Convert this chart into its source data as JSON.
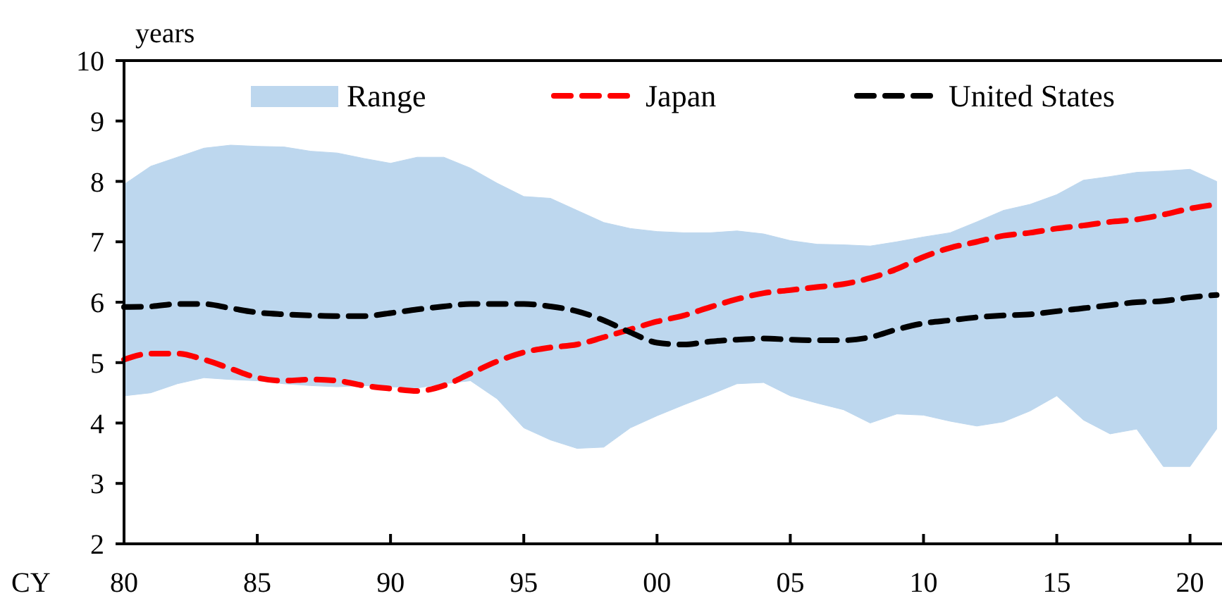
{
  "chart_data": {
    "type": "line",
    "ylabel": "years",
    "xlabel": "CY",
    "x": [
      1980,
      1981,
      1982,
      1983,
      1984,
      1985,
      1986,
      1987,
      1988,
      1989,
      1990,
      1991,
      1992,
      1993,
      1994,
      1995,
      1996,
      1997,
      1998,
      1999,
      2000,
      2001,
      2002,
      2003,
      2004,
      2005,
      2006,
      2007,
      2008,
      2009,
      2010,
      2011,
      2012,
      2013,
      2014,
      2015,
      2016,
      2017,
      2018,
      2019,
      2020,
      2021
    ],
    "series": [
      {
        "name": "Range",
        "color": "#bdd7ee",
        "values": [
          null,
          null,
          null,
          null,
          null,
          null,
          null,
          null,
          null,
          null,
          null,
          null,
          null,
          null,
          null,
          null,
          null,
          null,
          null,
          null,
          null,
          null,
          null,
          null,
          null,
          null,
          null,
          null,
          null,
          null,
          null,
          null,
          null,
          null,
          null,
          null,
          null,
          null,
          null,
          null,
          null,
          null
        ],
        "lower": [
          4.45,
          4.5,
          4.65,
          4.75,
          4.72,
          4.7,
          4.65,
          4.62,
          4.6,
          4.62,
          4.6,
          4.58,
          4.65,
          4.7,
          4.4,
          3.92,
          3.72,
          3.58,
          3.6,
          3.92,
          4.12,
          4.3,
          4.47,
          4.65,
          4.67,
          4.45,
          4.33,
          4.22,
          4.0,
          4.15,
          4.13,
          4.03,
          3.95,
          4.02,
          4.2,
          4.45,
          4.05,
          3.82,
          3.9,
          3.28,
          3.28,
          3.9
        ],
        "upper": [
          7.95,
          8.25,
          8.4,
          8.55,
          8.6,
          8.58,
          8.57,
          8.5,
          8.47,
          8.38,
          8.3,
          8.4,
          8.4,
          8.22,
          7.97,
          7.75,
          7.72,
          7.52,
          7.32,
          7.22,
          7.17,
          7.15,
          7.15,
          7.18,
          7.13,
          7.02,
          6.96,
          6.95,
          6.93,
          7.0,
          7.08,
          7.15,
          7.33,
          7.52,
          7.62,
          7.78,
          8.02,
          8.08,
          8.15,
          8.17,
          8.2,
          8.0
        ]
      },
      {
        "name": "Japan",
        "color": "#ff0000",
        "line_style": "dashed",
        "values": [
          5.05,
          5.15,
          5.15,
          5.05,
          4.9,
          4.75,
          4.7,
          4.72,
          4.7,
          4.62,
          4.57,
          4.53,
          4.62,
          4.82,
          5.02,
          5.17,
          5.25,
          5.3,
          5.42,
          5.55,
          5.68,
          5.78,
          5.92,
          6.05,
          6.15,
          6.2,
          6.25,
          6.3,
          6.4,
          6.55,
          6.75,
          6.9,
          7.0,
          7.1,
          7.15,
          7.22,
          7.27,
          7.33,
          7.37,
          7.45,
          7.55,
          7.62
        ]
      },
      {
        "name": "United States",
        "color": "#000000",
        "line_style": "dashed",
        "values": [
          5.92,
          5.93,
          5.97,
          5.97,
          5.9,
          5.83,
          5.8,
          5.78,
          5.77,
          5.77,
          5.82,
          5.88,
          5.93,
          5.97,
          5.97,
          5.97,
          5.93,
          5.85,
          5.7,
          5.5,
          5.33,
          5.3,
          5.35,
          5.38,
          5.4,
          5.38,
          5.37,
          5.37,
          5.42,
          5.55,
          5.65,
          5.7,
          5.75,
          5.78,
          5.8,
          5.85,
          5.9,
          5.95,
          6.0,
          6.02,
          6.08,
          6.12
        ]
      }
    ],
    "xlim": [
      1980,
      2021.2
    ],
    "xticks": [
      {
        "value": 1980,
        "label": "80"
      },
      {
        "value": 1985,
        "label": "85"
      },
      {
        "value": 1990,
        "label": "90"
      },
      {
        "value": 1995,
        "label": "95"
      },
      {
        "value": 2000,
        "label": "00"
      },
      {
        "value": 2005,
        "label": "05"
      },
      {
        "value": 2010,
        "label": "10"
      },
      {
        "value": 2015,
        "label": "15"
      },
      {
        "value": 2020,
        "label": "20"
      }
    ],
    "ylim": [
      2,
      10
    ],
    "yticks": [
      2,
      3,
      4,
      5,
      6,
      7,
      8,
      9,
      10
    ],
    "grid": false,
    "legend": "top"
  }
}
